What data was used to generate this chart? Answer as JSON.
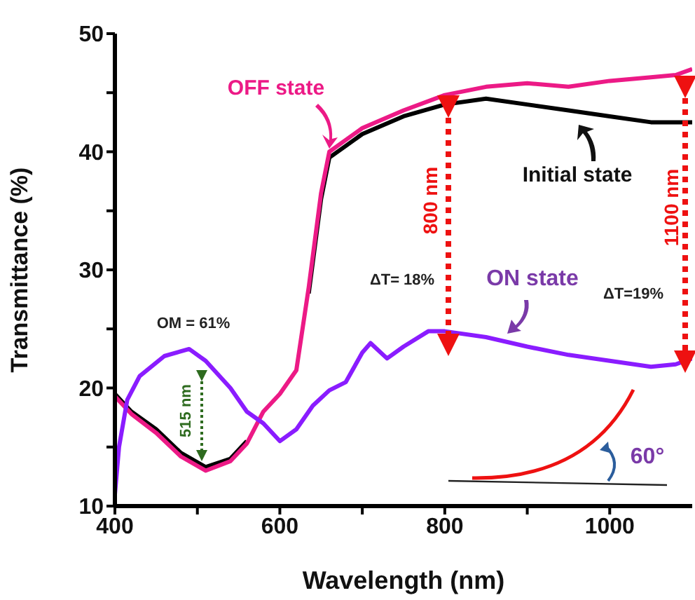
{
  "chart_data": {
    "type": "line",
    "xlabel": "Wavelength (nm)",
    "ylabel": "Transmittance (%)",
    "xlim": [
      400,
      1100
    ],
    "xticks": [
      400,
      {
        "value": 500,
        "label": null
      },
      600,
      {
        "value": 700,
        "label": null
      },
      800,
      {
        "value": 900,
        "label": null
      },
      1000
    ],
    "ylim": [
      10,
      50
    ],
    "yticks": [
      10,
      {
        "value": 15,
        "label": null
      },
      20,
      {
        "value": 25,
        "label": null
      },
      30,
      {
        "value": 35,
        "label": null
      },
      40,
      {
        "value": 45,
        "label": null
      },
      50
    ],
    "marker": "none",
    "line_style": "solid",
    "series": [
      {
        "name": "Initial state",
        "color": "#000000",
        "x": [
          400,
          420,
          450,
          480,
          510,
          540,
          560,
          580,
          600,
          620,
          635,
          650,
          660,
          680,
          700,
          750,
          800,
          850,
          900,
          950,
          1000,
          1050,
          1100
        ],
        "values": [
          19.5,
          18,
          16.5,
          14.5,
          13.3,
          14,
          15.5,
          null,
          null,
          null,
          28,
          36,
          39.5,
          40.5,
          41.5,
          43,
          44,
          44.5,
          44,
          43.5,
          43,
          42.5,
          42.5
        ]
      },
      {
        "name": "OFF state",
        "color": "#ec1a86",
        "x": [
          400,
          420,
          450,
          480,
          510,
          540,
          560,
          580,
          600,
          620,
          635,
          650,
          660,
          680,
          700,
          750,
          800,
          850,
          900,
          950,
          1000,
          1050,
          1080,
          1100
        ],
        "values": [
          19.3,
          17.8,
          16.2,
          14.2,
          13,
          13.8,
          15.3,
          18,
          19.5,
          21.5,
          28.5,
          36.5,
          40,
          41,
          42,
          43.5,
          44.8,
          45.5,
          45.8,
          45.5,
          46,
          46.3,
          46.5,
          47
        ]
      },
      {
        "name": "ON state",
        "color": "#8a1cff",
        "x": [
          400,
          405,
          415,
          430,
          460,
          490,
          510,
          540,
          560,
          580,
          600,
          620,
          640,
          660,
          680,
          700,
          710,
          730,
          750,
          780,
          800,
          850,
          900,
          950,
          1000,
          1050,
          1080,
          1100
        ],
        "values": [
          11,
          15,
          19,
          21,
          22.7,
          23.3,
          22.3,
          20,
          18,
          17,
          15.5,
          16.5,
          18.5,
          19.8,
          20.5,
          23,
          23.8,
          22.5,
          23.5,
          24.8,
          24.8,
          24.3,
          23.5,
          22.8,
          22.3,
          21.8,
          22,
          22.5
        ]
      }
    ],
    "annotations": [
      "ΔT= 18%",
      "ΔT=19%",
      "OM = 61%",
      "515 nm",
      "800 nm",
      "1100 nm",
      "60°"
    ]
  }
}
